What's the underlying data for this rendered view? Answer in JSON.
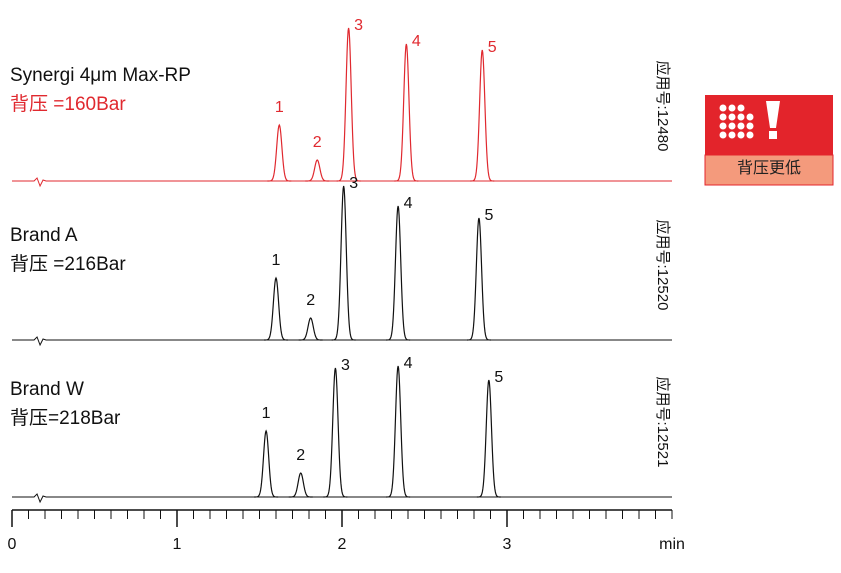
{
  "chart_data": {
    "type": "chromatogram",
    "x_label": "min",
    "xlim": [
      0,
      4
    ],
    "xticks": [
      0,
      1,
      2,
      3
    ],
    "minor_xticks": [
      0,
      0.1,
      0.2,
      0.3,
      0.4,
      0.5,
      0.6,
      0.7,
      0.8,
      0.9,
      1,
      1.1,
      1.2,
      1.3,
      1.4,
      1.5,
      1.6,
      1.7,
      1.8,
      1.9,
      2,
      2.1,
      2.2,
      2.3,
      2.4,
      2.5,
      2.6,
      2.7,
      2.8,
      2.9,
      3,
      3.1,
      3.2,
      3.3,
      3.4,
      3.5,
      3.6,
      3.7,
      3.8,
      3.9,
      4
    ],
    "series": [
      {
        "name": "Synergi 4μm Max-RP",
        "pressure": "背压 =160Bar",
        "app_no": "应用号:12480",
        "color": "#e0292f",
        "peak_labels": [
          "1",
          "2",
          "3",
          "4",
          "5"
        ],
        "retention_times": [
          1.62,
          1.85,
          2.04,
          2.39,
          2.85
        ],
        "heights": [
          56,
          21,
          153,
          137,
          131
        ]
      },
      {
        "name": "Brand A",
        "pressure": "背压 =216Bar",
        "app_no": "应用号:12520",
        "color": "#111111",
        "peak_labels": [
          "1",
          "2",
          "3",
          "4",
          "5"
        ],
        "retention_times": [
          1.6,
          1.81,
          2.01,
          2.34,
          2.83
        ],
        "heights": [
          62,
          22,
          154,
          134,
          122
        ]
      },
      {
        "name": "Brand W",
        "pressure": "背压=218Bar",
        "app_no": "应用号:12521",
        "color": "#111111",
        "peak_labels": [
          "1",
          "2",
          "3",
          "4",
          "5"
        ],
        "retention_times": [
          1.54,
          1.75,
          1.96,
          2.34,
          2.89
        ],
        "heights": [
          66,
          24,
          129,
          131,
          117
        ]
      }
    ]
  },
  "badge": {
    "label": "背压更低"
  }
}
